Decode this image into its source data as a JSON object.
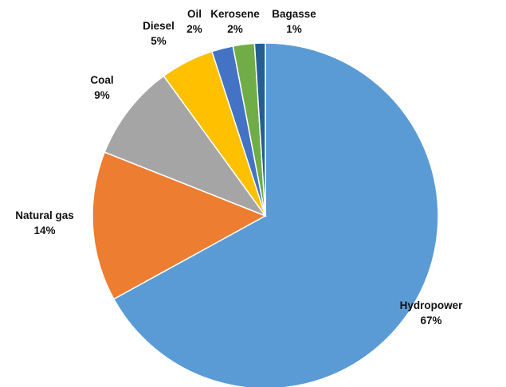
{
  "chart_data": {
    "type": "pie",
    "title": "",
    "start": "12 o'clock",
    "direction": "clockwise",
    "legend": "none",
    "slices": [
      {
        "label": "Hydropower",
        "value": 67,
        "display": "67%",
        "color": "#5B9BD5"
      },
      {
        "label": "Natural gas",
        "value": 14,
        "display": "14%",
        "color": "#ED7D31"
      },
      {
        "label": "Coal",
        "value": 9,
        "display": "9%",
        "color": "#A5A5A5"
      },
      {
        "label": "Diesel",
        "value": 5,
        "display": "5%",
        "color": "#FFC000"
      },
      {
        "label": "Oil",
        "value": 2,
        "display": "2%",
        "color": "#4472C4"
      },
      {
        "label": "Kerosene",
        "value": 2,
        "display": "2%",
        "color": "#70AD47"
      },
      {
        "label": "Bagasse",
        "value": 1,
        "display": "1%",
        "color": "#255E91"
      }
    ]
  }
}
